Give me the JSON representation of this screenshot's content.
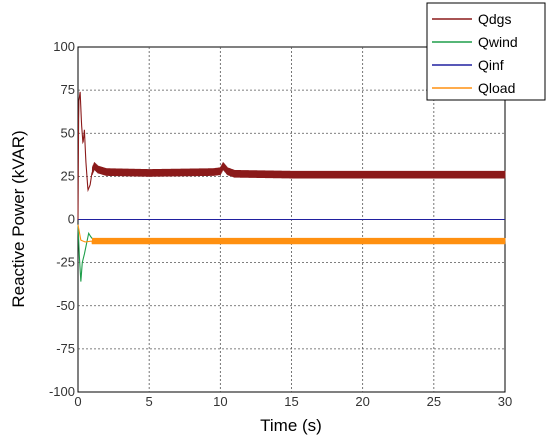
{
  "chart_data": {
    "type": "line",
    "title": "",
    "xlabel": "Time (s)",
    "ylabel": "Reactive Power (kVAR)",
    "xlim": [
      0,
      30
    ],
    "ylim": [
      -100,
      100
    ],
    "xticks": [
      "0",
      "5",
      "10",
      "15",
      "20",
      "25",
      "30"
    ],
    "yticks": [
      "100",
      "75",
      "50",
      "25",
      "0",
      "-25",
      "-50",
      "-75",
      "-100"
    ],
    "grid": true,
    "legend_position": "top-right",
    "series": [
      {
        "name": "Qdgs",
        "color": "#8b1a1a",
        "oscillation": 2.2,
        "points": [
          [
            0,
            0
          ],
          [
            0.05,
            68
          ],
          [
            0.15,
            74
          ],
          [
            0.25,
            55
          ],
          [
            0.35,
            44
          ],
          [
            0.45,
            52
          ],
          [
            0.55,
            34
          ],
          [
            0.7,
            17
          ],
          [
            0.85,
            20
          ],
          [
            1.0,
            28
          ],
          [
            1.15,
            31
          ],
          [
            1.4,
            29
          ],
          [
            2,
            27.5
          ],
          [
            5,
            27
          ],
          [
            9.5,
            27.5
          ],
          [
            10.0,
            28
          ],
          [
            10.2,
            31
          ],
          [
            10.5,
            28
          ],
          [
            11,
            26.5
          ],
          [
            15,
            26
          ],
          [
            20,
            26
          ],
          [
            25,
            26
          ],
          [
            30,
            26
          ]
        ]
      },
      {
        "name": "Qwind",
        "color": "#1e9e4a",
        "oscillation": 0,
        "points": [
          [
            0,
            -3
          ],
          [
            0.1,
            -22
          ],
          [
            0.2,
            -36
          ],
          [
            0.3,
            -25
          ],
          [
            0.45,
            -20
          ],
          [
            0.6,
            -14
          ],
          [
            0.75,
            -8
          ],
          [
            0.9,
            -10
          ],
          [
            1.1,
            -12
          ],
          [
            1.5,
            -12.5
          ],
          [
            30,
            -12.5
          ]
        ]
      },
      {
        "name": "Qinf",
        "color": "#2020a0",
        "oscillation": 0,
        "points": [
          [
            0,
            0
          ],
          [
            30,
            0
          ]
        ]
      },
      {
        "name": "Qload",
        "color": "#ff9010",
        "oscillation": 1.8,
        "points": [
          [
            0,
            -3
          ],
          [
            0.2,
            -12
          ],
          [
            0.5,
            -13
          ],
          [
            1.0,
            -12.5
          ],
          [
            2,
            -12.5
          ],
          [
            30,
            -12.5
          ]
        ]
      }
    ]
  }
}
